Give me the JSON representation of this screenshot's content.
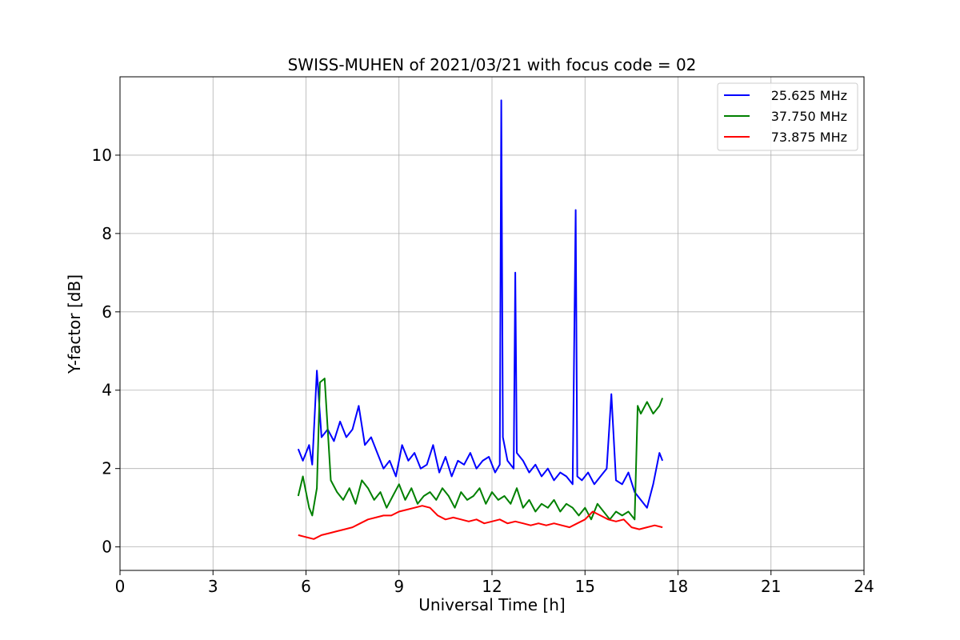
{
  "chart_data": {
    "type": "line",
    "title": "SWISS-MUHEN of 2021/03/21 with focus code = 02",
    "xlabel": "Universal Time [h]",
    "ylabel": "Y-factor [dB]",
    "xlim": [
      0,
      24
    ],
    "ylim": [
      -0.6,
      12
    ],
    "xticks": [
      0,
      3,
      6,
      9,
      12,
      15,
      18,
      21,
      24
    ],
    "yticks": [
      0,
      2,
      4,
      6,
      8,
      10
    ],
    "grid": true,
    "legend_position": "top-right",
    "series": [
      {
        "name": "25.625 MHz",
        "color": "#0000ff",
        "x": [
          5.75,
          5.9,
          6.1,
          6.2,
          6.35,
          6.5,
          6.7,
          6.9,
          7.1,
          7.3,
          7.5,
          7.7,
          7.9,
          8.1,
          8.3,
          8.5,
          8.7,
          8.9,
          9.1,
          9.3,
          9.5,
          9.7,
          9.9,
          10.1,
          10.3,
          10.5,
          10.7,
          10.9,
          11.1,
          11.3,
          11.5,
          11.7,
          11.9,
          12.1,
          12.25,
          12.3,
          12.35,
          12.5,
          12.7,
          12.75,
          12.8,
          13.0,
          13.2,
          13.4,
          13.6,
          13.8,
          14.0,
          14.2,
          14.4,
          14.6,
          14.7,
          14.75,
          14.9,
          15.1,
          15.3,
          15.5,
          15.7,
          15.85,
          16.0,
          16.2,
          16.4,
          16.6,
          16.8,
          17.0,
          17.2,
          17.4,
          17.5
        ],
        "values": [
          2.5,
          2.2,
          2.6,
          2.1,
          4.5,
          2.8,
          3.0,
          2.7,
          3.2,
          2.8,
          3.0,
          3.6,
          2.6,
          2.8,
          2.4,
          2.0,
          2.2,
          1.8,
          2.6,
          2.2,
          2.4,
          2.0,
          2.1,
          2.6,
          1.9,
          2.3,
          1.8,
          2.2,
          2.1,
          2.4,
          2.0,
          2.2,
          2.3,
          1.9,
          2.1,
          11.4,
          2.8,
          2.2,
          2.0,
          7.0,
          2.4,
          2.2,
          1.9,
          2.1,
          1.8,
          2.0,
          1.7,
          1.9,
          1.8,
          1.6,
          8.6,
          1.8,
          1.7,
          1.9,
          1.6,
          1.8,
          2.0,
          3.9,
          1.7,
          1.6,
          1.9,
          1.4,
          1.2,
          1.0,
          1.6,
          2.4,
          2.2
        ]
      },
      {
        "name": "37.750 MHz",
        "color": "#008000",
        "x": [
          5.75,
          5.9,
          6.1,
          6.2,
          6.35,
          6.45,
          6.6,
          6.8,
          7.0,
          7.2,
          7.4,
          7.6,
          7.8,
          8.0,
          8.2,
          8.4,
          8.6,
          8.8,
          9.0,
          9.2,
          9.4,
          9.6,
          9.8,
          10.0,
          10.2,
          10.4,
          10.6,
          10.8,
          11.0,
          11.2,
          11.4,
          11.6,
          11.8,
          12.0,
          12.2,
          12.4,
          12.6,
          12.8,
          13.0,
          13.2,
          13.4,
          13.6,
          13.8,
          14.0,
          14.2,
          14.4,
          14.6,
          14.8,
          15.0,
          15.2,
          15.4,
          15.6,
          15.8,
          16.0,
          16.2,
          16.4,
          16.6,
          16.7,
          16.8,
          17.0,
          17.2,
          17.4,
          17.5
        ],
        "values": [
          1.3,
          1.8,
          1.0,
          0.8,
          1.5,
          4.2,
          4.3,
          1.7,
          1.4,
          1.2,
          1.5,
          1.1,
          1.7,
          1.5,
          1.2,
          1.4,
          1.0,
          1.3,
          1.6,
          1.2,
          1.5,
          1.1,
          1.3,
          1.4,
          1.2,
          1.5,
          1.3,
          1.0,
          1.4,
          1.2,
          1.3,
          1.5,
          1.1,
          1.4,
          1.2,
          1.3,
          1.1,
          1.5,
          1.0,
          1.2,
          0.9,
          1.1,
          1.0,
          1.2,
          0.9,
          1.1,
          1.0,
          0.8,
          1.0,
          0.7,
          1.1,
          0.9,
          0.7,
          0.9,
          0.8,
          0.9,
          0.7,
          3.6,
          3.4,
          3.7,
          3.4,
          3.6,
          3.8
        ]
      },
      {
        "name": "73.875 MHz",
        "color": "#ff0000",
        "x": [
          5.75,
          6.0,
          6.25,
          6.5,
          6.75,
          7.0,
          7.25,
          7.5,
          7.75,
          8.0,
          8.25,
          8.5,
          8.75,
          9.0,
          9.25,
          9.5,
          9.75,
          10.0,
          10.25,
          10.5,
          10.75,
          11.0,
          11.25,
          11.5,
          11.75,
          12.0,
          12.25,
          12.5,
          12.75,
          13.0,
          13.25,
          13.5,
          13.75,
          14.0,
          14.25,
          14.5,
          14.75,
          15.0,
          15.25,
          15.5,
          15.75,
          16.0,
          16.25,
          16.5,
          16.75,
          17.0,
          17.25,
          17.5
        ],
        "values": [
          0.3,
          0.25,
          0.2,
          0.3,
          0.35,
          0.4,
          0.45,
          0.5,
          0.6,
          0.7,
          0.75,
          0.8,
          0.8,
          0.9,
          0.95,
          1.0,
          1.05,
          1.0,
          0.8,
          0.7,
          0.75,
          0.7,
          0.65,
          0.7,
          0.6,
          0.65,
          0.7,
          0.6,
          0.65,
          0.6,
          0.55,
          0.6,
          0.55,
          0.6,
          0.55,
          0.5,
          0.6,
          0.7,
          0.9,
          0.8,
          0.7,
          0.65,
          0.7,
          0.5,
          0.45,
          0.5,
          0.55,
          0.5
        ]
      }
    ]
  }
}
